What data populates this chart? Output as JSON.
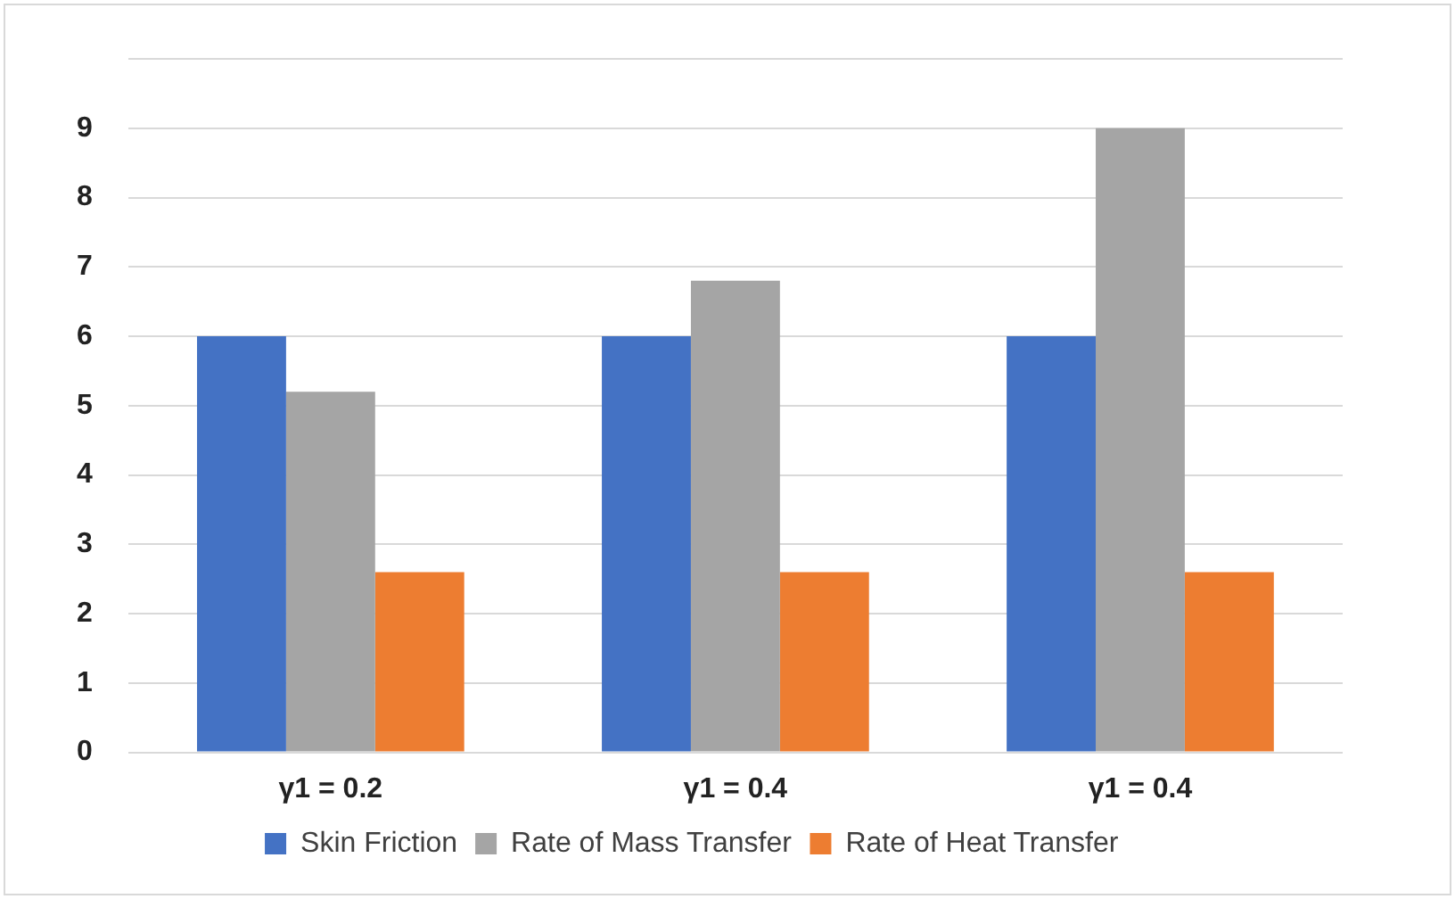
{
  "chart_data": {
    "type": "bar",
    "categories": [
      "γ1 = 0.2",
      "γ1 = 0.4",
      "γ1 = 0.4"
    ],
    "series": [
      {
        "name": "Skin Friction",
        "color": "#4472c4",
        "values": [
          6.0,
          6.0,
          6.0
        ]
      },
      {
        "name": "Rate of Mass Transfer",
        "color": "#a5a5a5",
        "values": [
          5.2,
          6.8,
          9.0
        ]
      },
      {
        "name": "Rate of Heat Transfer",
        "color": "#ed7d31",
        "values": [
          2.6,
          2.6,
          2.6
        ]
      }
    ],
    "ylim": [
      0,
      10
    ],
    "yticks": [
      0,
      1,
      2,
      3,
      4,
      5,
      6,
      7,
      8,
      9,
      {
        "value": 10,
        "label": null
      }
    ],
    "grid": "y",
    "legend": "bottom"
  }
}
